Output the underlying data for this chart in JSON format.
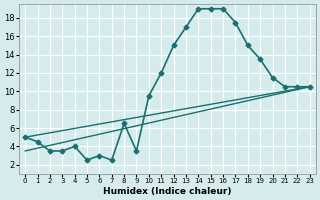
{
  "xlabel": "Humidex (Indice chaleur)",
  "bg_color": "#d6ecec",
  "line_color": "#1a7070",
  "grid_color": "#ffffff",
  "xlim": [
    -0.5,
    23.5
  ],
  "ylim": [
    1,
    19.5
  ],
  "yticks": [
    2,
    4,
    6,
    8,
    10,
    12,
    14,
    16,
    18
  ],
  "xticks": [
    0,
    1,
    2,
    3,
    4,
    5,
    6,
    7,
    8,
    9,
    10,
    11,
    12,
    13,
    14,
    15,
    16,
    17,
    18,
    19,
    20,
    21,
    22,
    23
  ],
  "main_x": [
    0,
    1,
    2,
    3,
    4,
    5,
    6,
    7,
    8,
    9,
    10,
    11,
    12,
    13,
    14,
    15,
    16,
    17,
    18,
    19,
    20,
    21,
    22,
    23
  ],
  "main_y": [
    5,
    4.5,
    3.5,
    3.5,
    4,
    2.5,
    3,
    2.5,
    6.5,
    3.5,
    9.5,
    12,
    15,
    17,
    19,
    19,
    19,
    17.5,
    15,
    13.5,
    11.5,
    10.5,
    10.5,
    10.5
  ],
  "line2_x": [
    0,
    23
  ],
  "line2_y": [
    5,
    10.5
  ],
  "line3_x": [
    0,
    23
  ],
  "line3_y": [
    3.5,
    10.5
  ]
}
